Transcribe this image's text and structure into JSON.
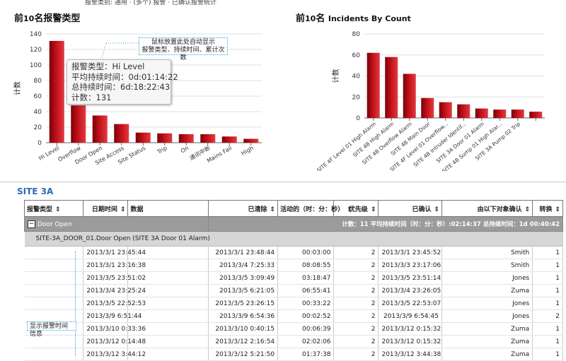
{
  "top_text": "报警类别: 通用 · (多个) 报警 · 已确认报警统计",
  "chart_left": {
    "title_prefix": "前",
    "title_num": "10",
    "title_suffix": "名报警类型",
    "ylabel": "计数",
    "tooltip": {
      "type_line": "报警类型：Hi Level",
      "avg_line": "平均持续时间：0d:01:14:22",
      "total_line": "总持续时间：6d:18:22:43",
      "count_line": "计数：131"
    },
    "callout_line1": "鼠标放置此处自动显示",
    "callout_line2": "报警类型、持续时间、累计次数"
  },
  "chart_right": {
    "title_prefix": "前",
    "title_num": "10",
    "title_suffix": "名 ",
    "title_en": "Incidents By Count",
    "ylabel": "计数"
  },
  "chart_data": [
    {
      "type": "bar",
      "title": "前10名报警类型",
      "ylabel": "计数",
      "ylim": [
        0,
        140
      ],
      "yticks": [
        0,
        20,
        40,
        60,
        80,
        100,
        120,
        140
      ],
      "categories": [
        "Hi Level",
        "Overflow",
        "Door Open",
        "Site Access",
        "Site Status",
        "Trip",
        "On",
        "通讯中断",
        "Mains Fail",
        "High"
      ],
      "values": [
        131,
        48,
        35,
        24,
        13,
        12,
        11,
        11,
        8,
        5
      ],
      "grid": true,
      "color": "#c01018"
    },
    {
      "type": "bar",
      "title": "前10名 Incidents By Count",
      "ylabel": "计数",
      "ylim": [
        0,
        80
      ],
      "yticks": [
        0,
        20,
        40,
        60,
        80
      ],
      "categories": [
        "SITE 4F Level 01 High Alarm",
        "SITE 4B High Alarm",
        "SITE 4B Overflow Alarm",
        "SITE 4B Main Door",
        "SITE 4F Level 01 Overflow...",
        "SITE 4B Intruder Identif...",
        "SITE 3A Door 01 Alarm",
        "SITE 4B Sump 01 High Alar...",
        "SITE 3A Pump 02 Trip",
        ""
      ],
      "values": [
        62,
        58,
        42,
        19,
        15,
        13,
        9,
        8,
        8,
        6
      ],
      "grid": true,
      "color": "#c01018"
    }
  ],
  "section_title": "SITE 3A",
  "table": {
    "headers": [
      "报警类型",
      "日期时间",
      "数据",
      "已清除",
      "活动的（时：分：秒）",
      "优先级",
      "已确认",
      "由以下对象确认",
      "转换"
    ],
    "sort_glyph": "⇕",
    "group_label": "Door Open",
    "group_summary": "计数：11 平均持续时间（时：分：秒）:02:14:37 总持续时间：1d 00:40:42",
    "subgroup_label": "SITE-3A_DOOR_01.Door Open (SITE 3A Door 01 Alarm)",
    "rows": [
      [
        "2013/3/1 23:45:44",
        "2013/3/1 23:48:44",
        "00:03:00",
        "2",
        "2013/3/1 23:45:52",
        "Smith",
        "1"
      ],
      [
        "2013/3/1 23:16:38",
        "2013/3/4 7:25:33",
        "08:08:55",
        "2",
        "2013/3/3 23:17:06",
        "Smith",
        "1"
      ],
      [
        "2013/3/5 23:51:02",
        "2013/3/5 3:09:49",
        "03:18:47",
        "2",
        "2013/3/5 23:51:14",
        "Jones",
        "1"
      ],
      [
        "2013/3/4 23:25:24",
        "2013/3/5 6:21:05",
        "06:55:41",
        "2",
        "2013/3/4 23:26:05",
        "Zuma",
        "1"
      ],
      [
        "2013/3/5 22:52:53",
        "2013/3/5 23:26:15",
        "00:33:22",
        "2",
        "2013/3/5 22:53:07",
        "Jones",
        "1"
      ],
      [
        "2013/3/9 6:51:44",
        "2013/3/9 6:54:36",
        "00:02:52",
        "2",
        "2013/3/9 6:54:45",
        "Jones",
        "2"
      ],
      [
        "2013/3/10 0:33:36",
        "2013/3/10 0:40:15",
        "00:06:39",
        "2",
        "2013/3/12 0:15:32",
        "Zuma",
        "1"
      ],
      [
        "2013/3/12 0:14:48",
        "2013/3/12 2:16:54",
        "02:02:06",
        "2",
        "2013/3/12 0:15:32",
        "Zuma",
        "1"
      ],
      [
        "2013/3/12 3:44:12",
        "2013/3/12 5:21:50",
        "01:37:38",
        "2",
        "2013/3/12 3:44:38",
        "Zuma",
        "1"
      ]
    ],
    "callout": "显示报警时间信息"
  }
}
